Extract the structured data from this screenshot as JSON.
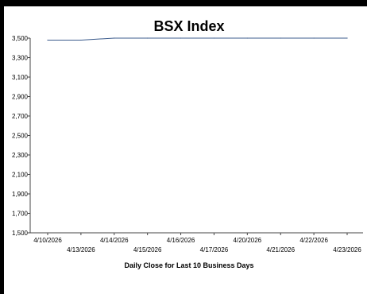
{
  "chart_data": {
    "type": "line",
    "title": "BSX Index",
    "xlabel": "Daily Close for Last 10 Business Days",
    "ylabel": "",
    "ylim": [
      1500,
      3500
    ],
    "yticks": [
      "3,500",
      "3,300",
      "3,100",
      "2,900",
      "2,700",
      "2,500",
      "2,300",
      "2,100",
      "1,900",
      "1,700",
      "1,500"
    ],
    "ytick_values": [
      3500,
      3300,
      3100,
      2900,
      2700,
      2500,
      2300,
      2100,
      1900,
      1700,
      1500
    ],
    "categories": [
      "4/10/2026",
      "4/13/2026",
      "4/14/2026",
      "4/15/2026",
      "4/16/2026",
      "4/17/2026",
      "4/20/2026",
      "4/21/2026",
      "4/22/2026",
      "4/23/2026"
    ],
    "series": [
      {
        "values": [
          3480,
          3480,
          3500,
          3500,
          3500,
          3500,
          3500,
          3500,
          3500,
          3500
        ]
      }
    ],
    "grid": false,
    "legend": "none",
    "line_color": "#3b5b8c"
  }
}
